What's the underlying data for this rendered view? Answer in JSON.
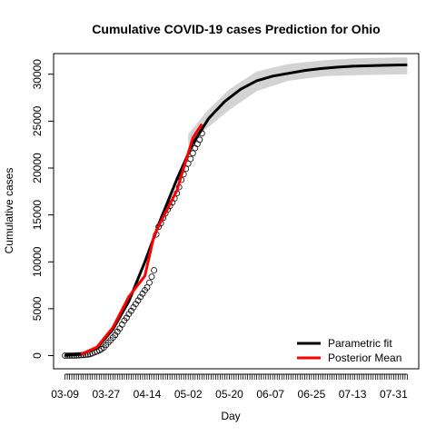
{
  "chart_data": {
    "type": "line",
    "title": "Cumulative COVID-19 cases Prediction for Ohio",
    "xlabel": "Day",
    "ylabel": "Cumulative cases",
    "x_start": "2020-03-09",
    "x_end": "2020-08-06",
    "xlim": [
      "2020-03-04",
      "2020-08-11"
    ],
    "ylim": [
      -1400,
      32200
    ],
    "x_ticks": [
      {
        "label": "03-09",
        "date": "2020-03-09"
      },
      {
        "label": "03-27",
        "date": "2020-03-27"
      },
      {
        "label": "04-14",
        "date": "2020-04-14"
      },
      {
        "label": "05-02",
        "date": "2020-05-02"
      },
      {
        "label": "05-20",
        "date": "2020-05-20"
      },
      {
        "label": "06-07",
        "date": "2020-06-07"
      },
      {
        "label": "06-25",
        "date": "2020-06-25"
      },
      {
        "label": "07-13",
        "date": "2020-07-13"
      },
      {
        "label": "07-31",
        "date": "2020-07-31"
      }
    ],
    "y_ticks": [
      0,
      5000,
      10000,
      15000,
      20000,
      25000,
      30000
    ],
    "y_tick_labels": [
      "0",
      "5000",
      "10000",
      "15000",
      "20000",
      "25000",
      "30000"
    ],
    "grid": false,
    "legend_position": "bottom-right",
    "series": [
      {
        "name": "Parametric fit",
        "color": "#000000",
        "x": [
          "2020-03-09",
          "2020-03-16",
          "2020-03-23",
          "2020-03-30",
          "2020-04-06",
          "2020-04-13",
          "2020-04-20",
          "2020-04-27",
          "2020-05-04",
          "2020-05-11",
          "2020-05-18",
          "2020-05-25",
          "2020-06-01",
          "2020-06-08",
          "2020-06-15",
          "2020-06-22",
          "2020-06-29",
          "2020-07-06",
          "2020-07-13",
          "2020-07-20",
          "2020-07-27",
          "2020-08-06"
        ],
        "y": [
          20,
          150,
          800,
          2800,
          5800,
          10000,
          14600,
          18800,
          22600,
          25300,
          27100,
          28400,
          29300,
          29800,
          30100,
          30400,
          30600,
          30750,
          30850,
          30900,
          30950,
          31000
        ]
      },
      {
        "name": "Posterior Mean",
        "color": "#ff0000",
        "x": [
          "2020-03-16",
          "2020-03-23",
          "2020-03-30",
          "2020-04-06",
          "2020-04-13",
          "2020-04-17",
          "2020-04-20",
          "2020-04-27",
          "2020-05-04",
          "2020-05-08"
        ],
        "y": [
          150,
          900,
          3000,
          6300,
          8500,
          12800,
          14300,
          17600,
          23200,
          24700
        ]
      }
    ],
    "band": {
      "color": "#d3d3d3",
      "x": [
        "2020-05-02",
        "2020-05-10",
        "2020-05-20",
        "2020-06-01",
        "2020-06-15",
        "2020-07-01",
        "2020-07-15",
        "2020-08-06"
      ],
      "lower": [
        22500,
        24200,
        26200,
        28200,
        29300,
        29800,
        29900,
        30000
      ],
      "upper": [
        23600,
        26000,
        28400,
        30300,
        31100,
        31500,
        31700,
        31800
      ]
    },
    "observed": {
      "dates": [
        "2020-03-09",
        "2020-03-10",
        "2020-03-11",
        "2020-03-12",
        "2020-03-13",
        "2020-03-14",
        "2020-03-15",
        "2020-03-16",
        "2020-03-17",
        "2020-03-18",
        "2020-03-19",
        "2020-03-20",
        "2020-03-21",
        "2020-03-22",
        "2020-03-23",
        "2020-03-24",
        "2020-03-25",
        "2020-03-26",
        "2020-03-27",
        "2020-03-28",
        "2020-03-29",
        "2020-03-30",
        "2020-03-31",
        "2020-04-01",
        "2020-04-02",
        "2020-04-03",
        "2020-04-04",
        "2020-04-05",
        "2020-04-06",
        "2020-04-07",
        "2020-04-08",
        "2020-04-09",
        "2020-04-10",
        "2020-04-11",
        "2020-04-12",
        "2020-04-13",
        "2020-04-14",
        "2020-04-15",
        "2020-04-16",
        "2020-04-17",
        "2020-04-18",
        "2020-04-19",
        "2020-04-20",
        "2020-04-21",
        "2020-04-22",
        "2020-04-23",
        "2020-04-24",
        "2020-04-25",
        "2020-04-26",
        "2020-04-27",
        "2020-04-28",
        "2020-04-29",
        "2020-04-30",
        "2020-05-01",
        "2020-05-02",
        "2020-05-03",
        "2020-05-04",
        "2020-05-05",
        "2020-05-06",
        "2020-05-07",
        "2020-05-08"
      ],
      "values": [
        3,
        4,
        5,
        5,
        13,
        26,
        37,
        50,
        67,
        88,
        119,
        169,
        247,
        351,
        442,
        564,
        704,
        867,
        1137,
        1406,
        1653,
        1933,
        2199,
        2547,
        2902,
        3312,
        3739,
        4043,
        4450,
        4782,
        5148,
        5512,
        5878,
        6250,
        6604,
        6975,
        7280,
        7794,
        8414,
        9107,
        12919,
        13725,
        14117,
        14694,
        15169,
        15587,
        15963,
        16325,
        16769,
        17303,
        17962,
        18743,
        19335,
        19914,
        20474,
        20969,
        21576,
        22131,
        22559,
        23016,
        23697
      ]
    },
    "legend": [
      {
        "label": "Parametric fit",
        "color": "#000000"
      },
      {
        "label": "Posterior Mean",
        "color": "#ff0000"
      }
    ]
  }
}
